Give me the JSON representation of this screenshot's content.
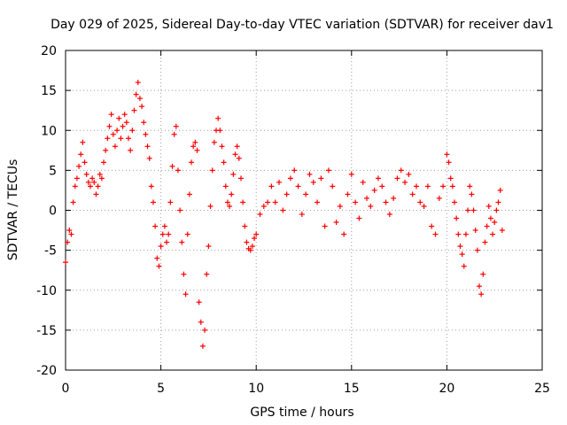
{
  "chart_data": {
    "type": "scatter",
    "title": "Day 029 of 2025, Sidereal Day-to-day VTEC variation (SDTVAR) for receiver dav1",
    "xlabel": "GPS time / hours",
    "ylabel": "SDTVAR / TECUs",
    "xlim": [
      0,
      25
    ],
    "ylim": [
      -20,
      20
    ],
    "xticks": [
      0,
      5,
      10,
      15,
      20,
      25
    ],
    "yticks": [
      -20,
      -15,
      -10,
      -5,
      0,
      5,
      10,
      15,
      20
    ],
    "grid": true,
    "marker": "+",
    "series": [
      {
        "name": "SDTVAR",
        "color": "#ff0000",
        "x": [
          0.0,
          0.1,
          0.2,
          0.3,
          0.4,
          0.5,
          0.6,
          0.7,
          0.8,
          0.9,
          1.0,
          1.1,
          1.2,
          1.3,
          1.4,
          1.5,
          1.6,
          1.7,
          1.8,
          1.9,
          2.0,
          2.1,
          2.2,
          2.3,
          2.4,
          2.5,
          2.6,
          2.7,
          2.8,
          2.9,
          3.0,
          3.1,
          3.2,
          3.3,
          3.4,
          3.5,
          3.6,
          3.7,
          3.8,
          3.9,
          4.0,
          4.1,
          4.2,
          4.3,
          4.4,
          4.5,
          4.6,
          4.7,
          4.8,
          4.9,
          5.0,
          5.1,
          5.2,
          5.3,
          5.4,
          5.5,
          5.6,
          5.7,
          5.8,
          5.9,
          6.0,
          6.1,
          6.2,
          6.3,
          6.4,
          6.5,
          6.6,
          6.7,
          6.8,
          6.9,
          7.0,
          7.1,
          7.2,
          7.3,
          7.4,
          7.5,
          7.6,
          7.7,
          7.8,
          7.9,
          8.0,
          8.1,
          8.2,
          8.3,
          8.4,
          8.5,
          8.6,
          8.7,
          8.8,
          8.9,
          9.0,
          9.1,
          9.2,
          9.3,
          9.4,
          9.5,
          9.6,
          9.7,
          9.8,
          9.9,
          10.0,
          10.2,
          10.4,
          10.6,
          10.8,
          11.0,
          11.2,
          11.4,
          11.6,
          11.8,
          12.0,
          12.2,
          12.4,
          12.6,
          12.8,
          13.0,
          13.2,
          13.4,
          13.6,
          13.8,
          14.0,
          14.2,
          14.4,
          14.6,
          14.8,
          15.0,
          15.2,
          15.4,
          15.6,
          15.8,
          16.0,
          16.2,
          16.4,
          16.6,
          16.8,
          17.0,
          17.2,
          17.4,
          17.6,
          17.8,
          18.0,
          18.2,
          18.4,
          18.6,
          18.8,
          19.0,
          19.2,
          19.4,
          19.6,
          19.8,
          20.0,
          20.1,
          20.2,
          20.3,
          20.4,
          20.5,
          20.6,
          20.7,
          20.8,
          20.9,
          21.0,
          21.1,
          21.2,
          21.3,
          21.4,
          21.5,
          21.6,
          21.7,
          21.8,
          21.9,
          22.0,
          22.1,
          22.2,
          22.3,
          22.4,
          22.5,
          22.6,
          22.7,
          22.8,
          22.9
        ],
        "y": [
          -6.5,
          -4.0,
          -2.5,
          -3.0,
          1.0,
          3.0,
          4.0,
          5.5,
          7.0,
          8.5,
          6.0,
          4.5,
          3.5,
          3.0,
          4.0,
          3.5,
          2.0,
          3.0,
          4.5,
          4.0,
          6.0,
          7.5,
          9.0,
          10.5,
          12.0,
          9.5,
          8.0,
          10.0,
          11.5,
          9.0,
          10.5,
          12.0,
          11.0,
          9.0,
          7.5,
          10.0,
          12.5,
          14.5,
          16.0,
          14.0,
          13.0,
          11.0,
          9.5,
          8.0,
          6.5,
          3.0,
          1.0,
          -2.0,
          -6.0,
          -7.0,
          -4.5,
          -3.0,
          -2.0,
          -4.0,
          -3.0,
          1.0,
          5.5,
          9.5,
          10.5,
          5.0,
          0.0,
          -4.0,
          -8.0,
          -10.5,
          -3.0,
          2.0,
          6.0,
          8.0,
          8.5,
          7.5,
          -11.5,
          -14.0,
          -17.0,
          -15.0,
          -8.0,
          -4.5,
          0.5,
          5.0,
          8.5,
          10.0,
          11.5,
          10.0,
          8.0,
          6.0,
          3.0,
          1.0,
          0.5,
          2.0,
          4.5,
          7.0,
          8.0,
          6.5,
          4.0,
          1.0,
          -2.0,
          -4.0,
          -4.8,
          -5.0,
          -4.5,
          -3.5,
          -3.0,
          -0.5,
          0.5,
          1.0,
          3.0,
          1.0,
          3.5,
          0.0,
          2.0,
          4.0,
          5.0,
          3.0,
          -0.5,
          2.0,
          4.5,
          3.5,
          1.0,
          4.0,
          -2.0,
          5.0,
          3.0,
          -1.5,
          0.5,
          -3.0,
          2.0,
          4.5,
          1.0,
          -1.0,
          3.5,
          1.5,
          0.5,
          2.5,
          4.0,
          3.0,
          1.0,
          -0.5,
          1.5,
          4.0,
          5.0,
          3.5,
          4.5,
          2.0,
          3.0,
          1.0,
          0.5,
          3.0,
          -2.0,
          -3.0,
          1.5,
          3.0,
          7.0,
          6.0,
          4.0,
          3.0,
          1.0,
          -1.0,
          -3.0,
          -4.5,
          -5.5,
          -7.0,
          -3.0,
          0.0,
          3.0,
          2.0,
          0.0,
          -2.5,
          -5.0,
          -9.5,
          -10.5,
          -8.0,
          -4.0,
          -2.0,
          0.5,
          -1.0,
          -3.0,
          -1.5,
          0.0,
          1.0,
          2.5,
          -2.5
        ]
      }
    ]
  }
}
